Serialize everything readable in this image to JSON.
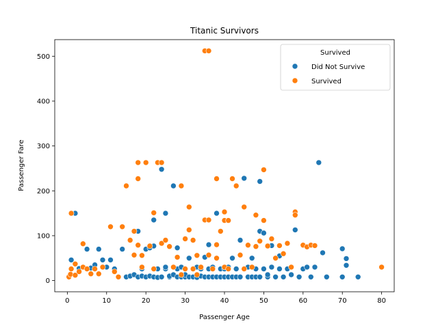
{
  "chart_data": {
    "type": "scatter",
    "title": "Titanic Survivors",
    "xlabel": "Passenger Age",
    "ylabel": "Passenger Fare",
    "xlim": [
      -3.2,
      83.2
    ],
    "ylim": [
      -25,
      537
    ],
    "xticks": [
      0,
      10,
      20,
      30,
      40,
      50,
      60,
      70,
      80
    ],
    "yticks": [
      0,
      100,
      200,
      300,
      400,
      500
    ],
    "grid": false,
    "legend": {
      "title": "Survived",
      "placement": "top-right"
    },
    "series": [
      {
        "name": "Did Not Survive",
        "color": "#1f77b4",
        "points": [
          [
            1,
            46
          ],
          [
            2,
            150
          ],
          [
            3,
            27
          ],
          [
            4,
            30
          ],
          [
            5,
            70
          ],
          [
            6,
            28
          ],
          [
            7,
            35
          ],
          [
            8,
            70
          ],
          [
            9,
            46
          ],
          [
            10,
            30
          ],
          [
            11,
            46
          ],
          [
            12,
            26
          ],
          [
            14,
            70
          ],
          [
            15,
            8
          ],
          [
            16,
            10
          ],
          [
            17,
            13
          ],
          [
            18,
            110
          ],
          [
            18,
            8
          ],
          [
            19,
            10
          ],
          [
            19,
            26
          ],
          [
            20,
            8
          ],
          [
            20,
            70
          ],
          [
            21,
            73
          ],
          [
            21,
            10
          ],
          [
            22,
            8
          ],
          [
            22,
            135
          ],
          [
            22,
            77
          ],
          [
            23,
            7
          ],
          [
            23,
            26
          ],
          [
            24,
            248
          ],
          [
            24,
            8
          ],
          [
            25,
            150
          ],
          [
            25,
            26
          ],
          [
            25,
            30
          ],
          [
            26,
            8
          ],
          [
            26,
            10
          ],
          [
            27,
            211
          ],
          [
            27,
            30
          ],
          [
            27,
            13
          ],
          [
            28,
            8
          ],
          [
            28,
            26
          ],
          [
            28,
            73
          ],
          [
            29,
            30
          ],
          [
            29,
            8
          ],
          [
            30,
            26
          ],
          [
            30,
            8
          ],
          [
            30,
            13
          ],
          [
            31,
            8
          ],
          [
            31,
            50
          ],
          [
            32,
            26
          ],
          [
            32,
            8
          ],
          [
            33,
            30
          ],
          [
            33,
            7
          ],
          [
            34,
            10
          ],
          [
            34,
            26
          ],
          [
            35,
            8
          ],
          [
            35,
            52
          ],
          [
            36,
            8
          ],
          [
            36,
            26
          ],
          [
            36,
            80
          ],
          [
            37,
            30
          ],
          [
            37,
            8
          ],
          [
            38,
            150
          ],
          [
            38,
            8
          ],
          [
            39,
            26
          ],
          [
            39,
            8
          ],
          [
            40,
            30
          ],
          [
            40,
            8
          ],
          [
            40,
            26
          ],
          [
            41,
            8
          ],
          [
            41,
            30
          ],
          [
            42,
            50
          ],
          [
            42,
            8
          ],
          [
            43,
            8
          ],
          [
            43,
            26
          ],
          [
            44,
            90
          ],
          [
            44,
            8
          ],
          [
            45,
            228
          ],
          [
            45,
            26
          ],
          [
            46,
            8
          ],
          [
            46,
            30
          ],
          [
            47,
            50
          ],
          [
            47,
            8
          ],
          [
            48,
            26
          ],
          [
            48,
            8
          ],
          [
            49,
            221
          ],
          [
            49,
            110
          ],
          [
            49,
            8
          ],
          [
            50,
            106
          ],
          [
            50,
            26
          ],
          [
            51,
            8
          ],
          [
            51,
            13
          ],
          [
            52,
            30
          ],
          [
            52,
            78
          ],
          [
            53,
            8
          ],
          [
            54,
            26
          ],
          [
            54,
            55
          ],
          [
            55,
            8
          ],
          [
            56,
            26
          ],
          [
            57,
            13
          ],
          [
            58,
            113
          ],
          [
            59,
            8
          ],
          [
            60,
            26
          ],
          [
            61,
            30
          ],
          [
            62,
            8
          ],
          [
            63,
            30
          ],
          [
            64,
            263
          ],
          [
            65,
            62
          ],
          [
            66,
            8
          ],
          [
            70,
            71
          ],
          [
            70,
            8
          ],
          [
            71,
            34
          ],
          [
            71,
            49
          ],
          [
            74,
            8
          ]
        ]
      },
      {
        "name": "Survived",
        "color": "#ff7f0e",
        "points": [
          [
            0.4,
            8
          ],
          [
            0.8,
            14
          ],
          [
            1,
            150
          ],
          [
            1,
            26
          ],
          [
            2,
            37
          ],
          [
            2,
            12
          ],
          [
            3,
            20
          ],
          [
            4,
            82
          ],
          [
            4,
            30
          ],
          [
            5,
            26
          ],
          [
            6,
            15
          ],
          [
            7,
            26
          ],
          [
            8,
            15
          ],
          [
            9,
            30
          ],
          [
            11,
            120
          ],
          [
            12,
            20
          ],
          [
            13,
            8
          ],
          [
            14,
            120
          ],
          [
            15,
            211
          ],
          [
            16,
            90
          ],
          [
            17,
            110
          ],
          [
            17,
            57
          ],
          [
            18,
            263
          ],
          [
            18,
            227
          ],
          [
            18,
            79
          ],
          [
            19,
            30
          ],
          [
            19,
            56
          ],
          [
            20,
            263
          ],
          [
            21,
            77
          ],
          [
            22,
            151
          ],
          [
            22,
            26
          ],
          [
            23,
            263
          ],
          [
            24,
            263
          ],
          [
            24,
            83
          ],
          [
            25,
            90
          ],
          [
            26,
            76
          ],
          [
            27,
            30
          ],
          [
            28,
            52
          ],
          [
            29,
            211
          ],
          [
            29,
            13
          ],
          [
            30,
            93
          ],
          [
            30,
            26
          ],
          [
            31,
            164
          ],
          [
            31,
            113
          ],
          [
            32,
            90
          ],
          [
            32,
            26
          ],
          [
            33,
            56
          ],
          [
            33,
            13
          ],
          [
            34,
            30
          ],
          [
            35,
            512
          ],
          [
            35,
            135
          ],
          [
            36,
            512
          ],
          [
            36,
            135
          ],
          [
            36,
            57
          ],
          [
            37,
            26
          ],
          [
            38,
            227
          ],
          [
            38,
            80
          ],
          [
            38,
            50
          ],
          [
            39,
            110
          ],
          [
            40,
            153
          ],
          [
            40,
            134
          ],
          [
            40,
            30
          ],
          [
            41,
            134
          ],
          [
            41,
            26
          ],
          [
            42,
            227
          ],
          [
            43,
            211
          ],
          [
            44,
            57
          ],
          [
            45,
            164
          ],
          [
            45,
            26
          ],
          [
            46,
            79
          ],
          [
            47,
            30
          ],
          [
            48,
            146
          ],
          [
            48,
            76
          ],
          [
            49,
            88
          ],
          [
            50,
            247
          ],
          [
            50,
            134
          ],
          [
            51,
            77
          ],
          [
            52,
            93
          ],
          [
            53,
            50
          ],
          [
            54,
            78
          ],
          [
            55,
            60
          ],
          [
            56,
            83
          ],
          [
            57,
            30
          ],
          [
            58,
            153
          ],
          [
            58,
            146
          ],
          [
            60,
            79
          ],
          [
            61,
            75
          ],
          [
            62,
            79
          ],
          [
            63,
            78
          ],
          [
            80,
            30
          ]
        ]
      }
    ]
  }
}
